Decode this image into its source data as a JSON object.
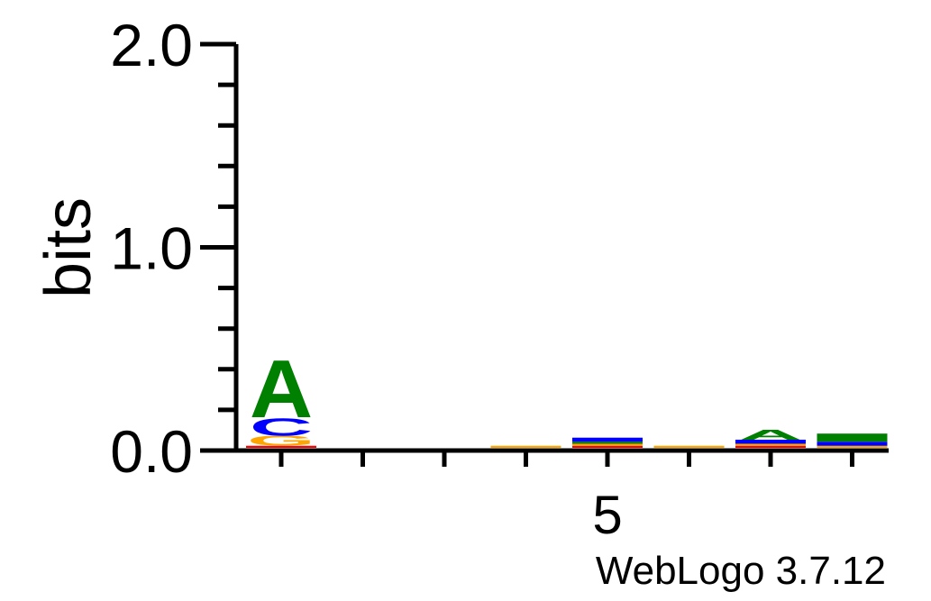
{
  "chart_data": {
    "type": "sequence-logo",
    "ylabel": "bits",
    "ylim": [
      0,
      2.0
    ],
    "y_tick_labels": [
      "0.0",
      "1.0",
      "2.0"
    ],
    "x_tick_label": "5",
    "x_tick_label_position": 5,
    "positions": [
      1,
      2,
      3,
      4,
      5,
      6,
      7,
      8
    ],
    "colors": {
      "A": "#008000",
      "C": "#0000ff",
      "G": "#ffa500",
      "T": "#ff0000"
    },
    "columns": [
      {
        "position": 1,
        "letters": [
          {
            "base": "T",
            "bits": 0.01
          },
          {
            "base": "G",
            "bits": 0.05
          },
          {
            "base": "C",
            "bits": 0.09
          },
          {
            "base": "A",
            "bits": 0.29
          }
        ]
      },
      {
        "position": 2,
        "letters": []
      },
      {
        "position": 3,
        "letters": []
      },
      {
        "position": 4,
        "letters": [
          {
            "base": "G",
            "bits": 0.01
          }
        ]
      },
      {
        "position": 5,
        "letters": [
          {
            "base": "T",
            "bits": 0.01
          },
          {
            "base": "G",
            "bits": 0.01
          },
          {
            "base": "A",
            "bits": 0.01
          },
          {
            "base": "C",
            "bits": 0.02
          }
        ]
      },
      {
        "position": 6,
        "letters": [
          {
            "base": "G",
            "bits": 0.01
          }
        ]
      },
      {
        "position": 7,
        "letters": [
          {
            "base": "T",
            "bits": 0.01
          },
          {
            "base": "G",
            "bits": 0.01
          },
          {
            "base": "C",
            "bits": 0.02
          },
          {
            "base": "A",
            "bits": 0.05
          }
        ]
      },
      {
        "position": 8,
        "letters": [
          {
            "base": "G",
            "bits": 0.01
          },
          {
            "base": "C",
            "bits": 0.02
          },
          {
            "base": "A",
            "bits": 0.04
          }
        ]
      }
    ]
  },
  "footer": {
    "credit": "WebLogo 3.7.12"
  }
}
